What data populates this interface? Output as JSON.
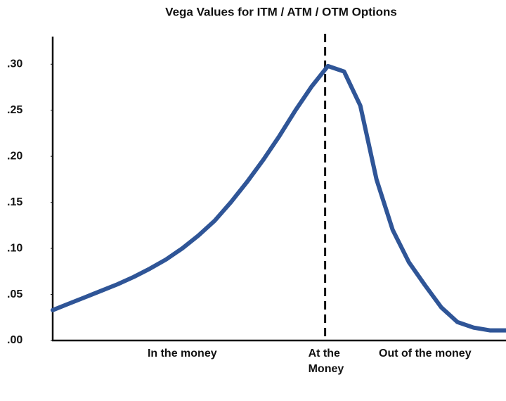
{
  "chart_data": {
    "type": "line",
    "title": "Vega Values for ITM / ATM / OTM Options",
    "categories": [
      null,
      null,
      null,
      null,
      null,
      null,
      null,
      null,
      "In the money",
      null,
      null,
      null,
      null,
      null,
      null,
      null,
      null,
      "At the Money",
      null,
      null,
      null,
      null,
      null,
      "Out of the money",
      null,
      null,
      null,
      null,
      null
    ],
    "series": [
      {
        "color": "#2f5597",
        "values": [
          0.033,
          0.04,
          0.047,
          0.054,
          0.061,
          0.069,
          0.078,
          0.088,
          0.1,
          0.114,
          0.13,
          0.15,
          0.172,
          0.196,
          0.222,
          0.25,
          0.276,
          0.298,
          0.292,
          0.255,
          0.175,
          0.12,
          0.085,
          0.06,
          0.036,
          0.02,
          0.014,
          0.011,
          0.011
        ]
      }
    ],
    "ylim": [
      0,
      0.33
    ],
    "yticks": [
      {
        "value": 0,
        "label": ".00"
      },
      {
        "value": 0.05,
        "label": ".05"
      },
      {
        "value": 0.1,
        "label": ".10"
      },
      {
        "value": 0.15,
        "label": ".15"
      },
      {
        "value": 0.2,
        "label": ".20"
      },
      {
        "value": 0.25,
        "label": ".25"
      },
      {
        "value": 0.3,
        "label": ".30"
      }
    ],
    "grid": false
  }
}
